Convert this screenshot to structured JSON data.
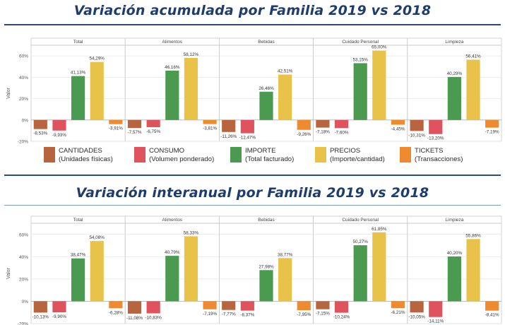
{
  "chart_data": [
    {
      "type": "bar",
      "title": "Variación acumulada por Familia 2019 vs 2018",
      "ylabel": "Valor",
      "ylim": [
        -20,
        70
      ],
      "yticks": [
        "60%",
        "40%",
        "20%",
        "0%",
        "-20%"
      ],
      "yticks_values": [
        60,
        40,
        20,
        0,
        -20
      ],
      "grid": true,
      "panels": [
        "Total",
        "Alimentos",
        "Bebidas",
        "Cuidado Personal",
        "Limpieza"
      ],
      "series": [
        {
          "name": "CANTIDADES",
          "values": [
            -8.53,
            -7.57,
            -11.26,
            -7.18,
            -10.31
          ],
          "labels": [
            "-8,53%",
            "-7,57%",
            "-11,26%",
            "-7,18%",
            "-10,31%"
          ]
        },
        {
          "name": "CONSUMO",
          "values": [
            -9.93,
            -6.75,
            -12.47,
            -7.6,
            -13.2
          ],
          "labels": [
            "-9,93%",
            "-6,75%",
            "-12,47%",
            "-7,60%",
            "-13,20%"
          ]
        },
        {
          "name": "IMPORTE",
          "values": [
            41.13,
            46.16,
            26.46,
            53.15,
            40.29
          ],
          "labels": [
            "41,13%",
            "46,16%",
            "26,46%",
            "53,15%",
            "40,29%"
          ]
        },
        {
          "name": "PRECIOS",
          "values": [
            54.29,
            58.12,
            42.51,
            65.0,
            56.41
          ],
          "labels": [
            "54,29%",
            "58,12%",
            "42,51%",
            "65,00%",
            "56,41%"
          ]
        },
        {
          "name": "TICKETS",
          "values": [
            -3.91,
            -3.81,
            -9.26,
            -4.45,
            -7.19
          ],
          "labels": [
            "-3,91%",
            "-3,81%",
            "-9,26%",
            "-4,45%",
            "-7,19%"
          ]
        }
      ]
    },
    {
      "type": "bar",
      "title": "Variación interanual por Familia 2019 vs 2018",
      "ylabel": "Valor",
      "ylim": [
        -20,
        70
      ],
      "yticks": [
        "60%",
        "40%",
        "20%",
        "0%",
        "-20%"
      ],
      "yticks_values": [
        60,
        40,
        20,
        0,
        -20
      ],
      "grid": true,
      "panels": [
        "Total",
        "Alimentos",
        "Bebidas",
        "Cuidado Personal",
        "Limpieza"
      ],
      "series": [
        {
          "name": "CANTIDADES",
          "values": [
            -10.13,
            -11.08,
            -7.77,
            -7.15,
            -10.05
          ],
          "labels": [
            "-10,13%",
            "-11,08%",
            "-7,77%",
            "-7,15%",
            "-10,05%"
          ]
        },
        {
          "name": "CONSUMO",
          "values": [
            -9.9,
            -10.83,
            -8.37,
            -10.24,
            -14.11
          ],
          "labels": [
            "-9,90%",
            "-10,83%",
            "-8,37%",
            "-10,24%",
            "-14,11%"
          ]
        },
        {
          "name": "IMPORTE",
          "values": [
            38.47,
            40.79,
            27.98,
            50.27,
            40.2
          ],
          "labels": [
            "38,47%",
            "40,79%",
            "27,98%",
            "50,27%",
            "40,20%"
          ]
        },
        {
          "name": "PRECIOS",
          "values": [
            54.08,
            58.33,
            38.77,
            61.85,
            55.86
          ],
          "labels": [
            "54,08%",
            "58,33%",
            "38,77%",
            "61,85%",
            "55,86%"
          ]
        },
        {
          "name": "TICKETS",
          "values": [
            -6.28,
            -7.19,
            -7.95,
            -6.21,
            -8.41
          ],
          "labels": [
            "-6,28%",
            "-7,19%",
            "-7,95%",
            "-6,21%",
            "-8,41%"
          ]
        }
      ]
    }
  ],
  "legend": [
    {
      "line1": "CANTIDADES",
      "line2": "(Unidades físicas)",
      "color": "#b8653f"
    },
    {
      "line1": "CONSUMO",
      "line2": "(Volumen ponderado)",
      "color": "#e0525e"
    },
    {
      "line1": "IMPORTE",
      "line2": "(Total facturado)",
      "color": "#4a9a4f"
    },
    {
      "line1": "PRECIOS",
      "line2": "(Importe/cantidad)",
      "color": "#e9c24a"
    },
    {
      "line1": "TICKETS",
      "line2": "(Transacciones)",
      "color": "#f08a2e"
    }
  ],
  "colors": [
    "#b8653f",
    "#e0525e",
    "#4a9a4f",
    "#e9c24a",
    "#f08a2e"
  ]
}
